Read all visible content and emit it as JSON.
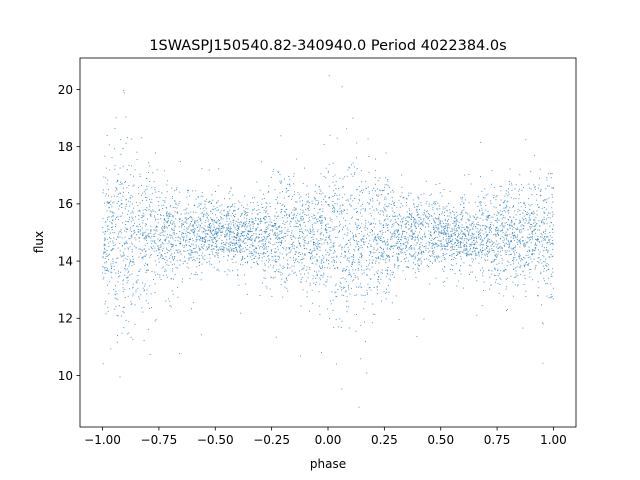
{
  "chart_data": {
    "type": "scatter",
    "title": "1SWASPJ150540.82-340940.0 Period 4022384.0s",
    "xlabel": "phase",
    "ylabel": "flux",
    "xlim": [
      -1.1,
      1.1
    ],
    "ylim": [
      8.2,
      21.1
    ],
    "xticks": [
      -1.0,
      -0.75,
      -0.5,
      -0.25,
      0.0,
      0.25,
      0.5,
      0.75,
      1.0
    ],
    "xtick_labels": [
      "−1.00",
      "−0.75",
      "−0.50",
      "−0.25",
      "0.00",
      "0.25",
      "0.50",
      "0.75",
      "1.00"
    ],
    "yticks": [
      10,
      12,
      14,
      16,
      18,
      20
    ],
    "ytick_labels": [
      "10",
      "12",
      "14",
      "16",
      "18",
      "20"
    ],
    "grid": false,
    "legend": "none",
    "marker_color": "#1f77b4",
    "series": [
      {
        "x_range": [
          -1.0,
          1.0
        ],
        "y_center": 14.9,
        "profile": [
          {
            "x": -1.0,
            "y_low": 12.6,
            "y_high": 17.4
          },
          {
            "x": -0.9,
            "y_low": 11.8,
            "y_high": 17.8
          },
          {
            "x": -0.8,
            "y_low": 12.4,
            "y_high": 17.2
          },
          {
            "x": -0.7,
            "y_low": 13.4,
            "y_high": 16.5
          },
          {
            "x": -0.6,
            "y_low": 13.6,
            "y_high": 16.3
          },
          {
            "x": -0.5,
            "y_low": 13.8,
            "y_high": 16.1
          },
          {
            "x": -0.4,
            "y_low": 13.8,
            "y_high": 16.0
          },
          {
            "x": -0.3,
            "y_low": 13.4,
            "y_high": 16.4
          },
          {
            "x": -0.2,
            "y_low": 13.0,
            "y_high": 16.8
          },
          {
            "x": -0.1,
            "y_low": 13.2,
            "y_high": 16.6
          },
          {
            "x": 0.0,
            "y_low": 12.6,
            "y_high": 17.4
          },
          {
            "x": 0.1,
            "y_low": 11.8,
            "y_high": 17.8
          },
          {
            "x": 0.2,
            "y_low": 12.4,
            "y_high": 17.2
          },
          {
            "x": 0.3,
            "y_low": 13.4,
            "y_high": 16.5
          },
          {
            "x": 0.4,
            "y_low": 13.6,
            "y_high": 16.3
          },
          {
            "x": 0.5,
            "y_low": 13.8,
            "y_high": 16.1
          },
          {
            "x": 0.6,
            "y_low": 13.8,
            "y_high": 16.0
          },
          {
            "x": 0.7,
            "y_low": 13.4,
            "y_high": 16.4
          },
          {
            "x": 0.8,
            "y_low": 13.0,
            "y_high": 16.8
          },
          {
            "x": 0.9,
            "y_low": 13.2,
            "y_high": 16.6
          },
          {
            "x": 1.0,
            "y_low": 12.6,
            "y_high": 17.4
          }
        ],
        "y_extent": [
          8.7,
          21.0
        ]
      }
    ]
  }
}
